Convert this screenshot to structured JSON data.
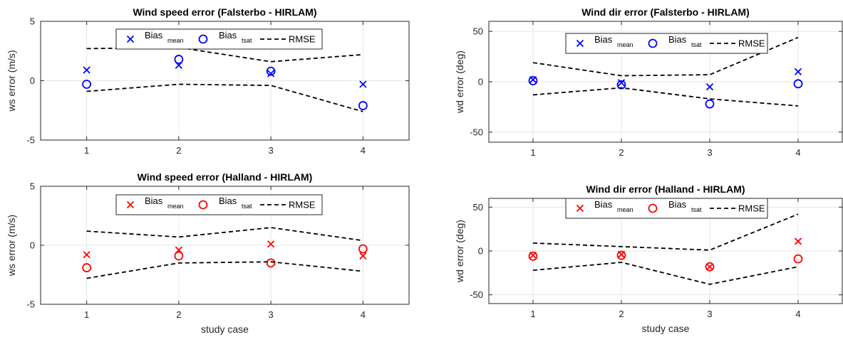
{
  "chart_data": [
    {
      "type": "scatter",
      "title": "Wind speed error (Falsterbo - HIRLAM)",
      "ylabel": "ws error (m/s)",
      "xlabel": "",
      "x": [
        1,
        2,
        3,
        4
      ],
      "xlim": [
        0.5,
        4.5
      ],
      "ylim": [
        -5,
        5
      ],
      "xticks": [
        "1",
        "2",
        "3",
        "4"
      ],
      "yticks": [
        "5",
        "0",
        "-5"
      ],
      "color": "#0000ff",
      "series": [
        {
          "name": "mean",
          "marker": "x",
          "values": [
            0.9,
            1.3,
            0.6,
            -0.3
          ]
        },
        {
          "name": "tsat",
          "marker": "o",
          "values": [
            -0.3,
            1.8,
            0.8,
            -2.1
          ]
        },
        {
          "name": "RMSE",
          "marker": "dashed",
          "values": [
            2.7,
            2.8,
            1.6,
            2.2
          ]
        },
        {
          "name": "RMSE-lower",
          "marker": "dashed",
          "values": [
            -0.9,
            -0.3,
            -0.4,
            -2.6
          ]
        }
      ]
    },
    {
      "type": "scatter",
      "title": "Wind dir error (Falsterbo - HIRLAM)",
      "ylabel": "wd error (deg)",
      "xlabel": "",
      "x": [
        1,
        2,
        3,
        4
      ],
      "xlim": [
        0.5,
        4.5
      ],
      "ylim": [
        -60,
        60
      ],
      "xticks": [
        "1",
        "2",
        "3",
        "4"
      ],
      "yticks": [
        "50",
        "0",
        "-50"
      ],
      "color": "#0000ff",
      "series": [
        {
          "name": "mean",
          "marker": "x",
          "values": [
            2,
            -1,
            -5,
            10
          ]
        },
        {
          "name": "tsat",
          "marker": "o",
          "values": [
            1,
            -3,
            -22,
            -2
          ]
        },
        {
          "name": "RMSE",
          "marker": "dashed",
          "values": [
            19,
            6,
            7,
            44
          ]
        },
        {
          "name": "RMSE-lower",
          "marker": "dashed",
          "values": [
            -13,
            -6,
            -17,
            -24
          ]
        }
      ]
    },
    {
      "type": "scatter",
      "title": "Wind speed error (Halland - HIRLAM)",
      "ylabel": "ws error (m/s)",
      "xlabel": "study case",
      "x": [
        1,
        2,
        3,
        4
      ],
      "xlim": [
        0.5,
        4.5
      ],
      "ylim": [
        -5,
        5
      ],
      "xticks": [
        "1",
        "2",
        "3",
        "4"
      ],
      "yticks": [
        "5",
        "0",
        "-5"
      ],
      "color": "#ff0000",
      "series": [
        {
          "name": "mean",
          "marker": "x",
          "values": [
            -0.8,
            -0.4,
            0.1,
            -0.9
          ]
        },
        {
          "name": "tsat",
          "marker": "o",
          "values": [
            -1.9,
            -0.9,
            -1.5,
            -0.3
          ]
        },
        {
          "name": "RMSE",
          "marker": "dashed",
          "values": [
            1.2,
            0.7,
            1.5,
            0.4
          ]
        },
        {
          "name": "RMSE-lower",
          "marker": "dashed",
          "values": [
            -2.8,
            -1.5,
            -1.4,
            -2.2
          ]
        }
      ]
    },
    {
      "type": "scatter",
      "title": "Wind dir error (Halland - HIRLAM)",
      "ylabel": "wd error (deg)",
      "xlabel": "study case",
      "x": [
        1,
        2,
        3,
        4
      ],
      "xlim": [
        0.5,
        4.5
      ],
      "ylim": [
        -60,
        60
      ],
      "xticks": [
        "1",
        "2",
        "3",
        "4"
      ],
      "yticks": [
        "50",
        "0",
        "-50"
      ],
      "color": "#ff0000",
      "series": [
        {
          "name": "mean",
          "marker": "x",
          "values": [
            -5,
            -4,
            -18,
            11
          ]
        },
        {
          "name": "tsat",
          "marker": "o",
          "values": [
            -6,
            -5,
            -18,
            -9
          ]
        },
        {
          "name": "RMSE",
          "marker": "dashed",
          "values": [
            9,
            5,
            1,
            42
          ]
        },
        {
          "name": "RMSE-lower",
          "marker": "dashed",
          "values": [
            -22,
            -13,
            -38,
            -18
          ]
        }
      ]
    }
  ],
  "legend": {
    "bias_label": "Bias",
    "mean_sub": "mean",
    "tsat_sub": "tsat",
    "rmse_label": "RMSE",
    "placement": "top-center"
  },
  "style": {
    "grid": true,
    "grid_color": "#e6e6e6",
    "axis_color": "#262626",
    "rmse_color": "#000000"
  }
}
